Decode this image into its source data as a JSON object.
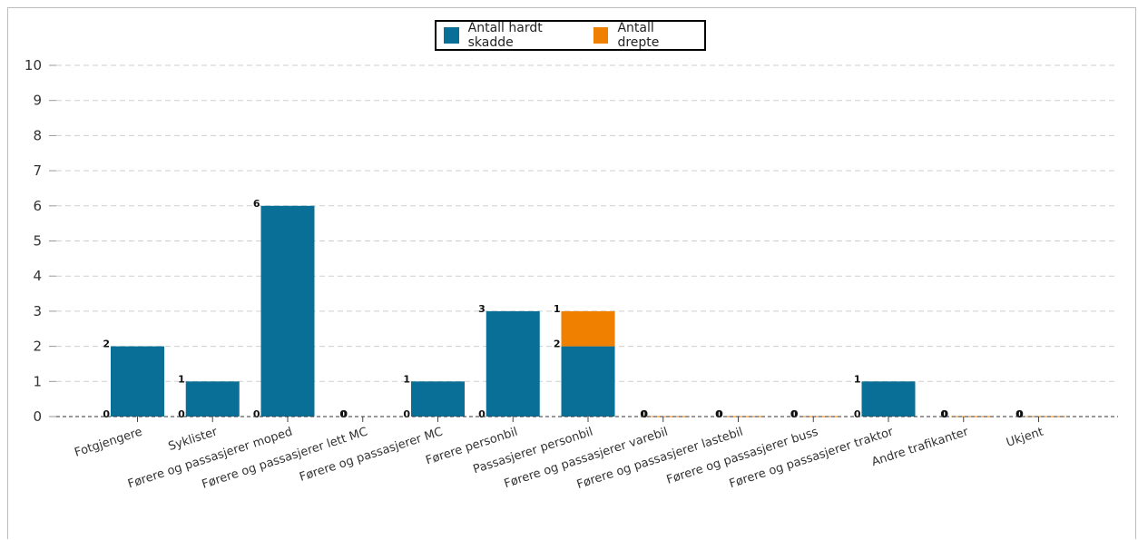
{
  "chart_data": {
    "type": "bar",
    "stacked": true,
    "categories": [
      "Fotgjengere",
      "Syklister",
      "Førere og passasjerer moped",
      "Førere og passasjerer lett MC",
      "Førere og passasjerer MC",
      "Førere personbil",
      "Passasjerer personbil",
      "Førere og passasjerer varebil",
      "Førere og passasjerer lastebil",
      "Førere og passasjerer buss",
      "Førere og passasjerer traktor",
      "Andre trafikanter",
      "Ukjent"
    ],
    "series": [
      {
        "name": "Antall hardt skadde",
        "color": "#0a6f96",
        "values": [
          2,
          1,
          6,
          0,
          1,
          3,
          2,
          0,
          0,
          0,
          1,
          0,
          0
        ]
      },
      {
        "name": "Antall drepte",
        "color": "#f08000",
        "values": [
          0,
          0,
          0,
          0,
          0,
          0,
          1,
          0,
          0,
          0,
          0,
          0,
          0
        ]
      }
    ],
    "ylim": [
      0,
      10
    ],
    "yticks": [
      "0",
      "1",
      "2",
      "3",
      "4",
      "5",
      "6",
      "7",
      "8",
      "9",
      "10"
    ],
    "grid": true,
    "legend_position": "top-center"
  }
}
